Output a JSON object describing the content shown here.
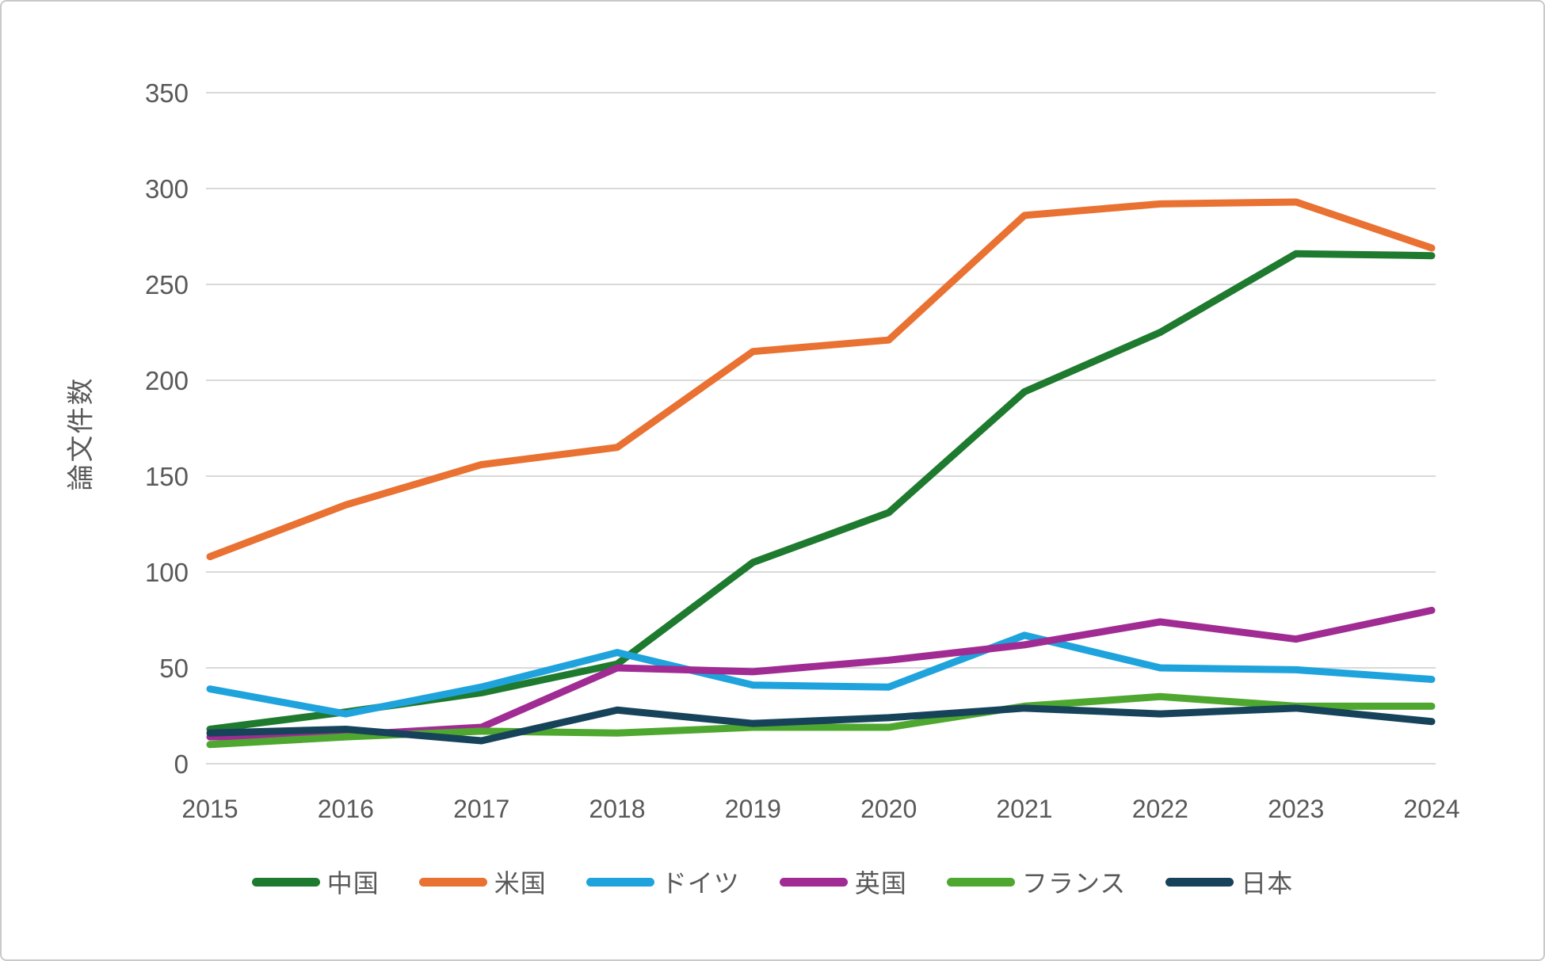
{
  "chart_data": {
    "type": "line",
    "title": "",
    "xlabel": "",
    "ylabel": "論文件数",
    "x": [
      2015,
      2016,
      2017,
      2018,
      2019,
      2020,
      2021,
      2022,
      2023,
      2024
    ],
    "ylim": [
      0,
      350
    ],
    "ytick_step": 50,
    "grid": "horizontal",
    "legend_position": "bottom",
    "series": [
      {
        "name": "中国",
        "color": "#1E7A2E",
        "values": [
          18,
          27,
          37,
          52,
          105,
          131,
          194,
          225,
          266,
          265
        ]
      },
      {
        "name": "米国",
        "color": "#E97132",
        "values": [
          108,
          135,
          156,
          165,
          215,
          221,
          286,
          292,
          293,
          269
        ]
      },
      {
        "name": "ドイツ",
        "color": "#1FA3DC",
        "values": [
          39,
          26,
          40,
          58,
          41,
          40,
          67,
          50,
          49,
          44
        ]
      },
      {
        "name": "英国",
        "color": "#A02B93",
        "values": [
          14,
          15,
          19,
          50,
          48,
          54,
          62,
          74,
          65,
          80
        ]
      },
      {
        "name": "フランス",
        "color": "#4EA72E",
        "values": [
          10,
          14,
          17,
          16,
          19,
          19,
          30,
          35,
          30,
          30
        ]
      },
      {
        "name": "日本",
        "color": "#17435A",
        "values": [
          16,
          18,
          12,
          28,
          21,
          24,
          29,
          26,
          29,
          22
        ]
      }
    ],
    "colors": {
      "gridline": "#D9D9D9",
      "tick_text": "#595959"
    }
  }
}
